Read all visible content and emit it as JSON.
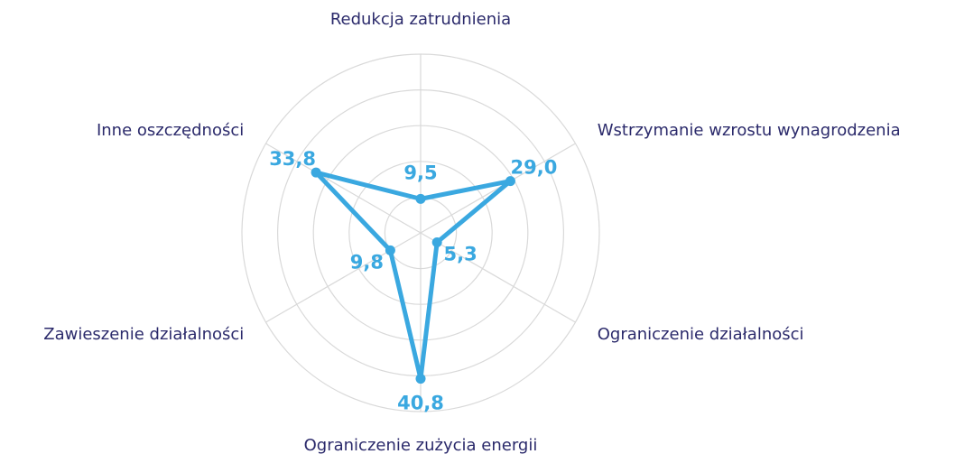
{
  "chart_data": {
    "type": "radar",
    "categories": [
      "Redukcja zatrudnienia",
      "Wstrzymanie wzrostu wynagrodzenia",
      "Ograniczenie działalności",
      "Ograniczenie zużycia energii",
      "Zawieszenie działalności",
      "Inne oszczędności"
    ],
    "series": [
      {
        "color": "#3aa8e0",
        "values": [
          9.5,
          29.0,
          5.3,
          40.8,
          9.8,
          33.8
        ],
        "value_labels": [
          "9,5",
          "29,0",
          "5,3",
          "40,8",
          "9,8",
          "33,8"
        ]
      }
    ],
    "rlim": [
      0,
      50
    ],
    "rticks": [
      10,
      20,
      30,
      40,
      50
    ],
    "grid": true
  }
}
